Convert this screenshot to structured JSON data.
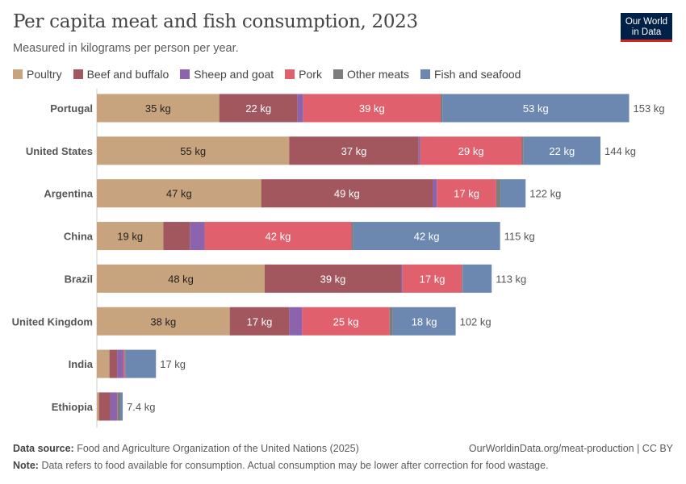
{
  "header": {
    "title": "Per capita meat and fish consumption, 2023",
    "subtitle": "Measured in kilograms per person per year.",
    "logo_text": "Our World in Data"
  },
  "chart_data": {
    "type": "bar",
    "orientation": "horizontal",
    "stacked": true,
    "unit": "kg",
    "categories": [
      "Portugal",
      "United States",
      "Argentina",
      "China",
      "Brazil",
      "United Kingdom",
      "India",
      "Ethiopia"
    ],
    "series": [
      {
        "name": "Poultry",
        "color": "#c8a47e",
        "values": [
          35,
          55,
          47,
          19,
          48,
          38,
          3.6,
          0.6
        ]
      },
      {
        "name": "Beef and buffalo",
        "color": "#a2575f",
        "values": [
          22.4,
          37,
          49,
          7.6,
          39,
          17,
          2.2,
          3.2
        ]
      },
      {
        "name": "Sheep and goat",
        "color": "#8c64ae",
        "values": [
          1.6,
          0.5,
          1.2,
          4.2,
          0.4,
          3.7,
          1.8,
          2
        ]
      },
      {
        "name": "Pork",
        "color": "#e0606e",
        "values": [
          39.3,
          29,
          17,
          42,
          17,
          25,
          0.4,
          0.1
        ]
      },
      {
        "name": "Other meats",
        "color": "#7d7d7d",
        "values": [
          0.5,
          0.5,
          1.2,
          0.5,
          0.2,
          0.9,
          0.1,
          0.9
        ]
      },
      {
        "name": "Fish and seafood",
        "color": "#6d88b0",
        "values": [
          53.4,
          22,
          7.2,
          42,
          8.3,
          18,
          8.8,
          0.6
        ]
      }
    ],
    "totals": [
      "153 kg",
      "144 kg",
      "122 kg",
      "115 kg",
      "113 kg",
      "102 kg",
      "17 kg",
      "7.4 kg"
    ],
    "xlim": [
      0,
      153
    ],
    "grid": false,
    "legend_position": "top-left"
  },
  "footer": {
    "source_label": "Data source:",
    "source": "Food and Agriculture Organization of the United Nations (2025)",
    "url": "OurWorldinData.org/meat-production | CC BY",
    "note_label": "Note:",
    "note": "Data refers to food available for consumption. Actual consumption may be lower after correction for food wastage."
  }
}
